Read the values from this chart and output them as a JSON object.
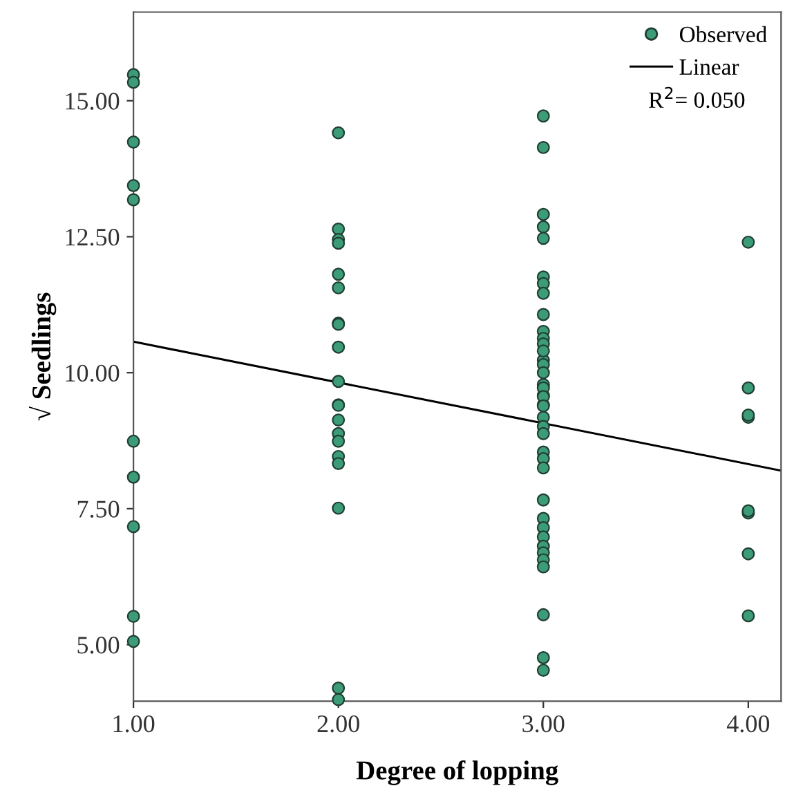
{
  "chart_data": {
    "type": "scatter",
    "xlabel": "Degree of lopping",
    "ylabel": "√ Seedlings",
    "xlim": [
      1.0,
      4.16
    ],
    "ylim": [
      3.96,
      16.63
    ],
    "xticks": [
      {
        "value": 1,
        "label": "1.00"
      },
      {
        "value": 2,
        "label": "2.00"
      },
      {
        "value": 3,
        "label": "3.00"
      },
      {
        "value": 4,
        "label": "4.00"
      }
    ],
    "yticks": [
      {
        "value": 5,
        "label": "5.00"
      },
      {
        "value": 7.5,
        "label": "7.50"
      },
      {
        "value": 10,
        "label": "10.00"
      },
      {
        "value": 12.5,
        "label": "12.50"
      },
      {
        "value": 15,
        "label": "15.00"
      }
    ],
    "grid": false,
    "legend": "top right",
    "marker": "circle",
    "annotations": [
      "R$^{2}$= 0.050"
    ],
    "series": [
      {
        "name": "Observed",
        "color": "#3d9c78",
        "x": [
          1,
          1,
          1,
          1,
          1,
          1,
          1,
          1,
          1,
          1,
          2,
          2,
          2,
          2,
          2,
          2,
          2,
          2,
          2,
          2,
          2,
          2,
          2,
          2,
          2,
          2,
          2,
          2,
          2,
          2,
          3,
          3,
          3,
          3,
          3,
          3,
          3,
          3,
          3,
          3,
          3,
          3,
          3,
          3,
          3,
          3,
          3,
          3,
          3,
          3,
          3,
          3,
          3,
          3,
          3,
          3,
          3,
          3,
          3,
          3,
          3,
          3,
          3,
          3,
          3,
          3,
          3,
          3,
          3,
          4,
          4,
          4,
          4,
          4,
          4,
          4,
          4
        ],
        "values": [
          15.48,
          15.34,
          14.24,
          13.44,
          13.18,
          8.74,
          8.08,
          7.17,
          5.52,
          5.06,
          14.41,
          12.64,
          12.45,
          12.38,
          11.81,
          11.56,
          10.91,
          10.89,
          10.47,
          9.84,
          9.41,
          9.13,
          8.88,
          8.74,
          8.46,
          8.33,
          7.51,
          4.2,
          3.99,
          9.4,
          14.72,
          14.14,
          12.91,
          12.68,
          12.47,
          11.76,
          11.64,
          11.46,
          11.07,
          10.76,
          10.63,
          10.53,
          10.23,
          10.15,
          10.0,
          9.78,
          9.58,
          9.41,
          9.72,
          9.56,
          9.39,
          9.18,
          9.01,
          8.88,
          8.54,
          8.42,
          8.25,
          7.66,
          7.32,
          7.15,
          6.98,
          6.81,
          6.69,
          6.56,
          6.43,
          5.55,
          4.76,
          4.53,
          10.4,
          12.4,
          9.72,
          9.18,
          9.22,
          7.42,
          7.46,
          6.67,
          5.53
        ]
      },
      {
        "name": "Linear",
        "type": "line",
        "color": "#000000",
        "line_style": "solid",
        "marker": "none",
        "x": [
          1.0,
          4.16
        ],
        "values": [
          10.57,
          8.2
        ]
      }
    ]
  }
}
